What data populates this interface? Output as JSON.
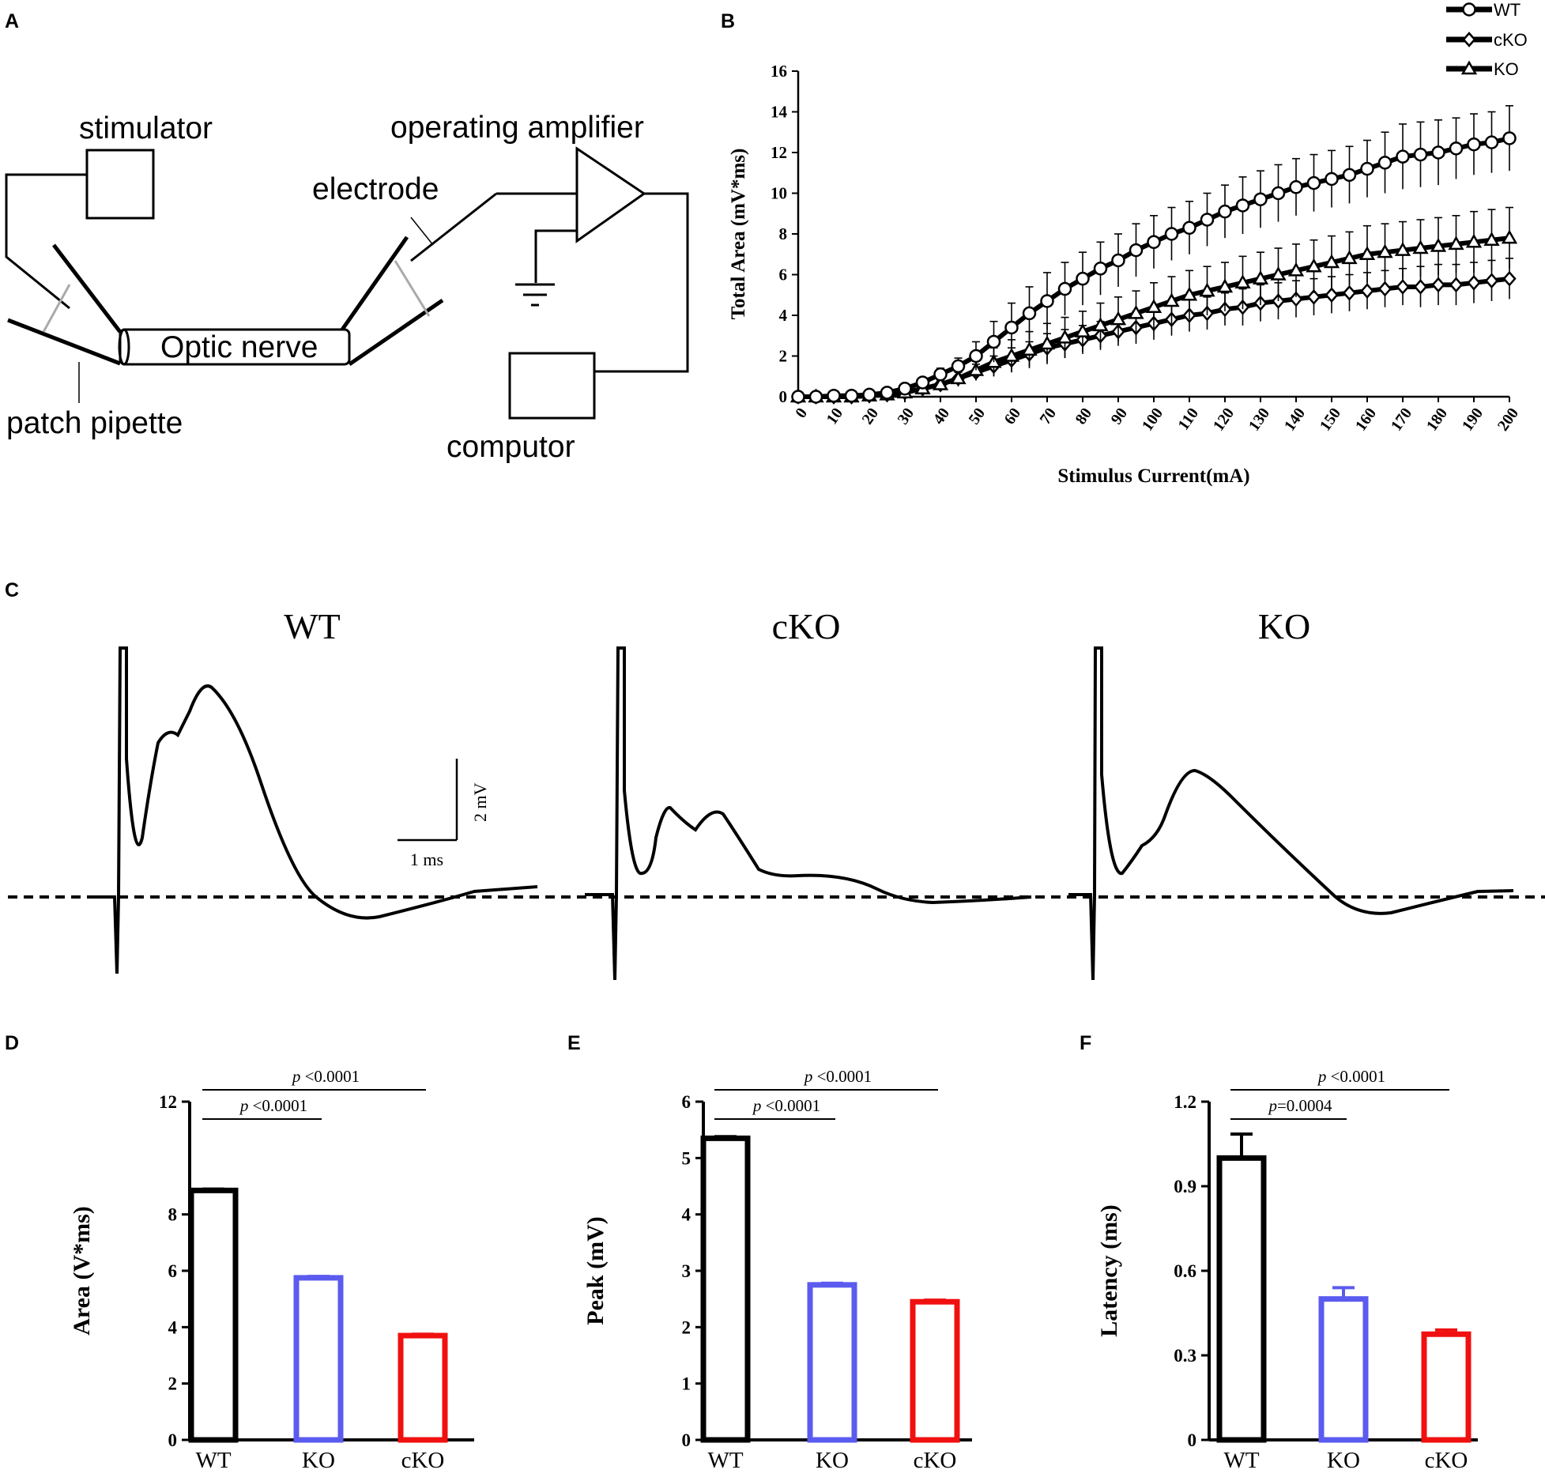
{
  "panels": {
    "a_label": "A",
    "b_label": "B",
    "c_label": "C",
    "d_label": "D",
    "e_label": "E",
    "f_label": "F"
  },
  "diagram": {
    "stimulator": "stimulator",
    "operating_amplifier": "operating amplifier",
    "electrode": "electrode",
    "optic_nerve": "Optic nerve",
    "patch_pipette": "patch pipette",
    "computor": "computor"
  },
  "traces": {
    "wt_title": "WT",
    "cko_title": "cKO",
    "ko_title": "KO",
    "scale_y": "2 mV",
    "scale_x": "1 ms"
  },
  "colors": {
    "wt": "#000000",
    "ko": "#5b5bf0",
    "cko": "#f01010"
  },
  "chart_data": [
    {
      "type": "line",
      "id": "B",
      "xlabel": "Stimulus Current(mA)",
      "ylabel": "Total Area (mV*ms)",
      "ylim": [
        0,
        16
      ],
      "yticks": [
        "0",
        "2",
        "4",
        "6",
        "8",
        "10",
        "12",
        "14",
        "16"
      ],
      "xticks": [
        "0",
        "10",
        "20",
        "30",
        "40",
        "50",
        "60",
        "70",
        "80",
        "90",
        "100",
        "110",
        "120",
        "130",
        "140",
        "150",
        "160",
        "170",
        "180",
        "190",
        "200"
      ],
      "x": [
        0,
        5,
        10,
        15,
        20,
        25,
        30,
        35,
        40,
        45,
        50,
        55,
        60,
        65,
        70,
        75,
        80,
        85,
        90,
        95,
        100,
        105,
        110,
        115,
        120,
        125,
        130,
        135,
        140,
        145,
        150,
        155,
        160,
        165,
        170,
        175,
        180,
        185,
        190,
        195,
        200
      ],
      "legend_position": "top-right",
      "series": [
        {
          "name": "WT",
          "marker": "circle",
          "values": [
            0,
            0,
            0.05,
            0.05,
            0.1,
            0.2,
            0.4,
            0.7,
            1.1,
            1.5,
            2.0,
            2.7,
            3.4,
            4.1,
            4.7,
            5.3,
            5.8,
            6.3,
            6.7,
            7.2,
            7.6,
            8.0,
            8.3,
            8.7,
            9.1,
            9.4,
            9.7,
            10.0,
            10.3,
            10.5,
            10.7,
            10.9,
            11.2,
            11.5,
            11.8,
            11.9,
            12.0,
            12.2,
            12.4,
            12.5,
            12.7
          ],
          "errors": [
            0.1,
            0.1,
            0.1,
            0.1,
            0.1,
            0.1,
            0.1,
            0.2,
            0.3,
            0.4,
            0.7,
            1.0,
            1.2,
            1.3,
            1.4,
            1.3,
            1.3,
            1.3,
            1.3,
            1.3,
            1.3,
            1.3,
            1.3,
            1.3,
            1.3,
            1.4,
            1.4,
            1.4,
            1.4,
            1.4,
            1.4,
            1.4,
            1.4,
            1.5,
            1.6,
            1.6,
            1.6,
            1.5,
            1.5,
            1.5,
            1.6
          ]
        },
        {
          "name": "cKO",
          "marker": "diamond",
          "values": [
            0,
            0,
            0,
            0,
            0.05,
            0.1,
            0.2,
            0.4,
            0.6,
            0.9,
            1.2,
            1.5,
            1.8,
            2.1,
            2.4,
            2.6,
            2.8,
            3.0,
            3.2,
            3.4,
            3.6,
            3.8,
            4.0,
            4.1,
            4.3,
            4.4,
            4.6,
            4.7,
            4.8,
            4.9,
            5.0,
            5.1,
            5.2,
            5.3,
            5.4,
            5.4,
            5.5,
            5.5,
            5.6,
            5.7,
            5.8
          ],
          "errors": [
            0.1,
            0.1,
            0.1,
            0.1,
            0.1,
            0.1,
            0.1,
            0.2,
            0.2,
            0.3,
            0.4,
            0.5,
            0.6,
            0.6,
            0.7,
            0.7,
            0.7,
            0.7,
            0.7,
            0.8,
            0.8,
            0.8,
            0.8,
            0.8,
            0.8,
            0.9,
            0.9,
            0.9,
            0.9,
            0.9,
            0.9,
            0.9,
            0.9,
            0.9,
            0.9,
            1.0,
            1.0,
            1.0,
            1.0,
            1.0,
            1.0
          ]
        },
        {
          "name": "KO",
          "marker": "triangle",
          "values": [
            0,
            0,
            0,
            0,
            0.05,
            0.1,
            0.2,
            0.4,
            0.6,
            0.9,
            1.3,
            1.7,
            2.0,
            2.3,
            2.6,
            2.9,
            3.2,
            3.5,
            3.8,
            4.1,
            4.4,
            4.7,
            5.0,
            5.2,
            5.4,
            5.6,
            5.8,
            6.0,
            6.2,
            6.4,
            6.6,
            6.8,
            7.0,
            7.1,
            7.2,
            7.3,
            7.4,
            7.5,
            7.6,
            7.7,
            7.8
          ],
          "errors": [
            0.1,
            0.1,
            0.1,
            0.1,
            0.1,
            0.1,
            0.1,
            0.2,
            0.3,
            0.4,
            0.5,
            0.7,
            0.8,
            0.9,
            1.0,
            1.0,
            1.0,
            1.1,
            1.1,
            1.1,
            1.2,
            1.2,
            1.2,
            1.2,
            1.2,
            1.3,
            1.3,
            1.3,
            1.3,
            1.3,
            1.3,
            1.3,
            1.4,
            1.4,
            1.4,
            1.4,
            1.4,
            1.4,
            1.5,
            1.5,
            1.5
          ]
        }
      ]
    },
    {
      "type": "bar",
      "id": "D",
      "ylabel": "Area (V*ms)",
      "ylim": [
        0,
        12
      ],
      "yticks": [
        "0",
        "2",
        "4",
        "6",
        "8",
        "12"
      ],
      "categories": [
        "WT",
        "KO",
        "cKO"
      ],
      "values": [
        8.85,
        5.75,
        3.7
      ],
      "errors": [
        0.05,
        0.05,
        0.05
      ],
      "annotations": [
        {
          "p_label": "p",
          "text": " <0.0001",
          "from": "WT",
          "to": "KO"
        },
        {
          "p_label": "p",
          "text": " <0.0001",
          "from": "WT",
          "to": "cKO"
        }
      ]
    },
    {
      "type": "bar",
      "id": "E",
      "ylabel": "Peak (mV)",
      "ylim": [
        0,
        6
      ],
      "yticks": [
        "0",
        "1",
        "2",
        "3",
        "4",
        "5",
        "6"
      ],
      "categories": [
        "WT",
        "KO",
        "cKO"
      ],
      "values": [
        5.35,
        2.75,
        2.45
      ],
      "errors": [
        0.03,
        0.03,
        0.03
      ],
      "annotations": [
        {
          "p_label": "p",
          "text": " <0.0001",
          "from": "WT",
          "to": "KO"
        },
        {
          "p_label": "p",
          "text": " <0.0001",
          "from": "WT",
          "to": "cKO"
        }
      ]
    },
    {
      "type": "bar",
      "id": "F",
      "ylabel": "Latency (ms)",
      "ylim": [
        0,
        1.2
      ],
      "yticks": [
        "0",
        "0.3",
        "0.6",
        "0.9",
        "1.2"
      ],
      "categories": [
        "WT",
        "KO",
        "cKO"
      ],
      "values": [
        1.0,
        0.5,
        0.375
      ],
      "errors": [
        0.085,
        0.04,
        0.015
      ],
      "annotations": [
        {
          "p_label": "p",
          "text": "=0.0004",
          "from": "WT",
          "to": "KO"
        },
        {
          "p_label": "p",
          "text": " <0.0001",
          "from": "WT",
          "to": "cKO"
        }
      ]
    }
  ]
}
